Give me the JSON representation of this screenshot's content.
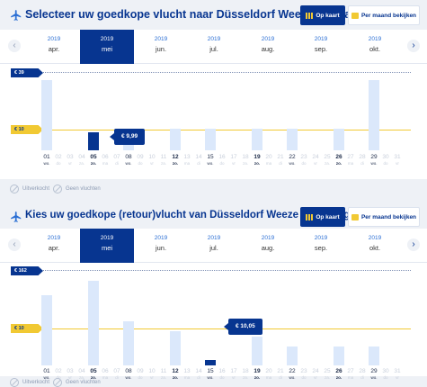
{
  "colors": {
    "brand": "#073590",
    "accent": "#f1c933",
    "bar": "#dbe8fb"
  },
  "buttons": {
    "map": "Op kaart",
    "month": "Per maand bekijken",
    "map_icon": "bar-chart-icon",
    "month_icon": "calendar-icon"
  },
  "legend": {
    "sold_out": "Uitverkocht",
    "no_flights": "Geen vluchten"
  },
  "months": [
    {
      "year": "2019",
      "label": "apr."
    },
    {
      "year": "2019",
      "label": "mei",
      "active": true
    },
    {
      "year": "2019",
      "label": "jun."
    },
    {
      "year": "2019",
      "label": "jul."
    },
    {
      "year": "2019",
      "label": "aug."
    },
    {
      "year": "2019",
      "label": "sep."
    },
    {
      "year": "2019",
      "label": "okt."
    }
  ],
  "days": [
    {
      "n": "01",
      "w": "wo."
    },
    {
      "n": "02",
      "w": "do"
    },
    {
      "n": "03",
      "w": "vr"
    },
    {
      "n": "04",
      "w": "za."
    },
    {
      "n": "05",
      "w": "zo."
    },
    {
      "n": "06",
      "w": "ma"
    },
    {
      "n": "07",
      "w": "di"
    },
    {
      "n": "08",
      "w": "wo."
    },
    {
      "n": "09",
      "w": "do"
    },
    {
      "n": "10",
      "w": "vr"
    },
    {
      "n": "11",
      "w": "za."
    },
    {
      "n": "12",
      "w": "zo."
    },
    {
      "n": "13",
      "w": "ma"
    },
    {
      "n": "14",
      "w": "di"
    },
    {
      "n": "15",
      "w": "wo."
    },
    {
      "n": "16",
      "w": "do"
    },
    {
      "n": "17",
      "w": "vr"
    },
    {
      "n": "18",
      "w": "za."
    },
    {
      "n": "19",
      "w": "zo."
    },
    {
      "n": "20",
      "w": "ma"
    },
    {
      "n": "21",
      "w": "di"
    },
    {
      "n": "22",
      "w": "wo."
    },
    {
      "n": "23",
      "w": "do"
    },
    {
      "n": "24",
      "w": "vr"
    },
    {
      "n": "25",
      "w": "za."
    },
    {
      "n": "26",
      "w": "zo."
    },
    {
      "n": "27",
      "w": "ma"
    },
    {
      "n": "28",
      "w": "di"
    },
    {
      "n": "29",
      "w": "wo."
    },
    {
      "n": "30",
      "w": "do"
    },
    {
      "n": "31",
      "w": "vr"
    }
  ],
  "outbound": {
    "title": "Selecteer uw goedkope vlucht naar Düsseldorf Weeze van Tanger",
    "max_label": "€ 39",
    "min_label": "€ 10",
    "selected_price": "€ 9,99",
    "flight_days": [
      "01",
      "05",
      "08",
      "12",
      "15",
      "19",
      "22",
      "26",
      "29"
    ],
    "bold_days": [
      "05",
      "12",
      "19",
      "26"
    ]
  },
  "return": {
    "title": "Kies uw goedkope (retour)vlucht van Düsseldorf Weeze naar Tanger",
    "max_label": "€ 162",
    "min_label": "€ 10",
    "selected_price": "€ 10,05",
    "flight_days": [
      "01",
      "05",
      "08",
      "12",
      "15",
      "19",
      "22",
      "26",
      "29"
    ],
    "bold_days": [
      "05",
      "12",
      "19",
      "26"
    ]
  },
  "chart_data": [
    {
      "type": "bar",
      "title": "Selecteer uw goedkope vlucht naar Düsseldorf Weeze van Tanger",
      "categories": [
        "01",
        "05",
        "08",
        "12",
        "15",
        "19",
        "22",
        "26",
        "29"
      ],
      "values": [
        39,
        9.99,
        12,
        12,
        12,
        12,
        12,
        12,
        39
      ],
      "selected": "05",
      "reference_lines": {
        "max": 39,
        "min": 10
      },
      "ylim": [
        0,
        39
      ]
    },
    {
      "type": "bar",
      "title": "Kies uw goedkope (retour)vlucht van Düsseldorf Weeze naar Tanger",
      "categories": [
        "01",
        "05",
        "08",
        "12",
        "15",
        "19",
        "22",
        "26",
        "29"
      ],
      "values": [
        135,
        162,
        85,
        66,
        10.05,
        56,
        37,
        37,
        37
      ],
      "selected": "15",
      "reference_lines": {
        "max": 162,
        "min": 10
      },
      "ylim": [
        0,
        162
      ]
    }
  ]
}
